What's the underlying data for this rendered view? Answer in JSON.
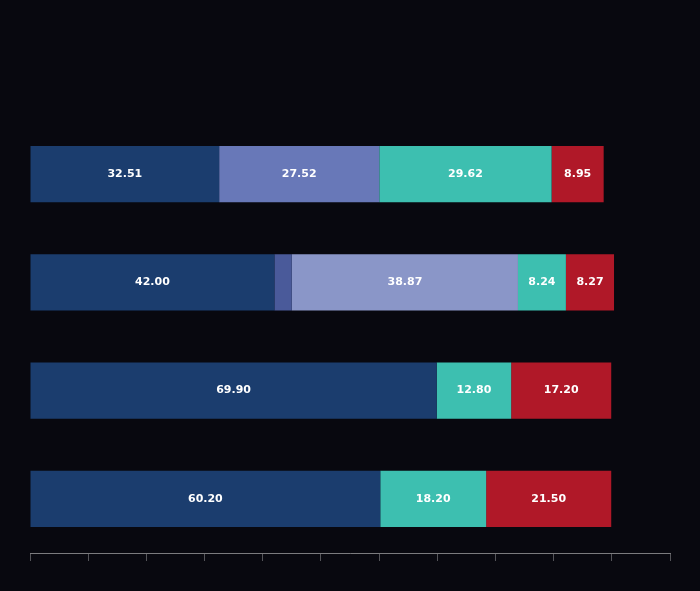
{
  "chart_data": {
    "type": "bar",
    "orientation": "horizontal",
    "stacked": true,
    "data_labels": true,
    "tick_labels": false,
    "grid": false,
    "categories": [
      null,
      null,
      null,
      null
    ],
    "xlim": [
      0,
      110
    ],
    "xticks": [
      0,
      10,
      20,
      30,
      40,
      50,
      60,
      70,
      80,
      90,
      100,
      110
    ],
    "series": [
      {
        "values": [
          32.51,
          42.0,
          69.9,
          60.2
        ],
        "colors": [
          "#1b3d6e",
          "#1b3d6e",
          "#1b3d6e",
          "#1b3d6e"
        ],
        "value_labels": [
          "32.51",
          "42.00",
          "69.90",
          "60.20"
        ]
      },
      {
        "values": [
          27.52,
          3.0,
          12.8,
          18.2
        ],
        "colors": [
          "#6878b8",
          "#4a5a9a",
          "#3dbfb0",
          "#3dbfb0"
        ],
        "value_labels": [
          "27.52",
          null,
          "12.80",
          "18.20"
        ]
      },
      {
        "values": [
          29.62,
          38.87,
          17.2,
          21.5
        ],
        "colors": [
          "#3dbfb0",
          "#8a96c8",
          "#b01828",
          "#b01828"
        ],
        "value_labels": [
          "29.62",
          "38.87",
          "17.20",
          "21.50"
        ]
      },
      {
        "values": [
          8.95,
          8.24,
          null,
          null
        ],
        "colors": [
          "#b01828",
          "#3dbfb0",
          null,
          null
        ],
        "value_labels": [
          "8.95",
          "8.24",
          null,
          null
        ]
      },
      {
        "values": [
          null,
          8.27,
          null,
          null
        ],
        "colors": [
          null,
          "#b01828",
          null,
          null
        ],
        "value_labels": [
          null,
          "8.27",
          null,
          null
        ]
      }
    ]
  }
}
